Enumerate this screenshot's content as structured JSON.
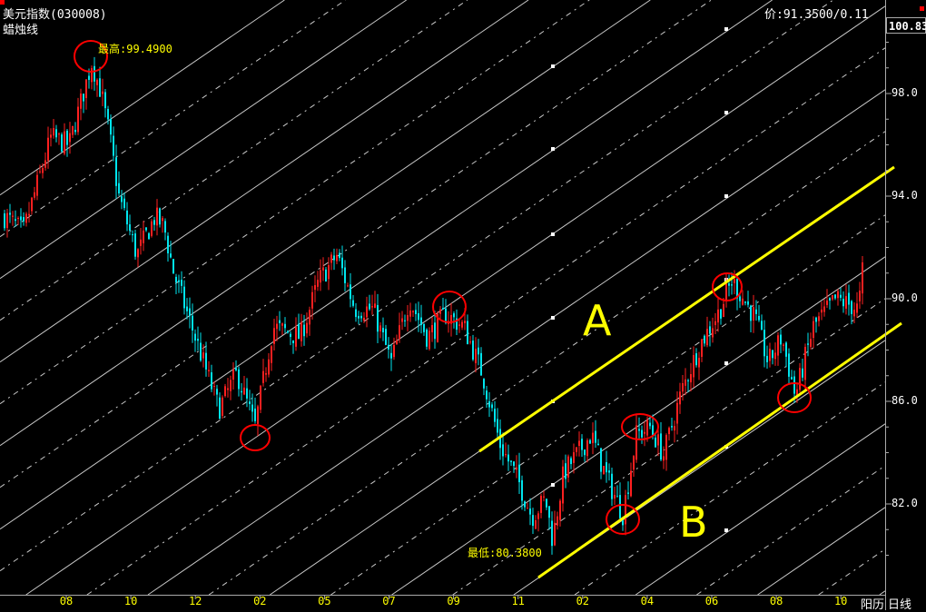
{
  "header": {
    "title": "美元指数(030008)",
    "chart_kind": "蜡烛线",
    "price_readout": "价:91.3500/0.11"
  },
  "axis": {
    "current_price_box": "100.83",
    "calendar_label": "阳历",
    "period_label": "日线"
  },
  "annotations": {
    "high_label": "最高:99.4900",
    "low_label": "最低:80.3800",
    "line_a_label": "A",
    "line_b_label": "B"
  },
  "colors": {
    "background": "#000000",
    "up_candle": "#ff2020",
    "down_candle": "#00e5ee",
    "channel_lines": "#ffff00",
    "circles": "#ff0000",
    "grid_lines": "#c8c8c8"
  },
  "chart_data": {
    "type": "candlestick",
    "title": "美元指数(030008)",
    "y_ticks": [
      98.0,
      94.0,
      90.0,
      86.0,
      82.0
    ],
    "ylim": [
      79.5,
      101
    ],
    "x_tick_labels": [
      "08",
      "10",
      "12",
      "02",
      "05",
      "07",
      "09",
      "11",
      "02",
      "04",
      "06",
      "08",
      "10"
    ],
    "series": [
      {
        "x": [
          -0.96,
          -0.68,
          -0.25,
          0.03,
          0.38,
          0.52,
          0.66,
          0.8,
          1.08,
          1.36,
          1.5,
          1.65,
          1.93,
          2.35,
          2.63,
          2.91,
          3.19,
          3.61,
          3.9,
          4.18,
          4.46,
          4.74,
          5.02,
          5.3,
          5.58,
          5.86,
          6.15,
          6.43,
          6.71,
          6.99,
          7.2,
          7.41,
          7.52,
          7.69,
          8.12,
          8.33,
          8.61,
          8.82,
          9.03,
          9.24,
          9.52,
          9.8,
          10.08,
          10.3,
          10.65,
          10.86,
          11.07,
          11.28,
          11.56,
          11.91,
          12.26,
          12.33
        ],
        "close": [
          93.2,
          92.6,
          96.3,
          96.0,
          99.2,
          98.1,
          96.3,
          94.0,
          91.7,
          93.2,
          92.8,
          91.0,
          88.9,
          85.7,
          87.1,
          85.0,
          88.9,
          88.5,
          90.7,
          91.7,
          89.6,
          89.6,
          87.5,
          90.0,
          88.5,
          89.4,
          88.9,
          87.1,
          84.3,
          82.9,
          81.5,
          82.2,
          80.6,
          83.2,
          84.7,
          83.2,
          81.6,
          84.7,
          85.0,
          83.9,
          86.4,
          88.2,
          89.4,
          90.7,
          89.3,
          87.5,
          88.5,
          86.2,
          88.9,
          90.0,
          89.6,
          91.3
        ]
      }
    ],
    "high": 99.49,
    "low": 80.38,
    "trend_lines": [
      "A",
      "B"
    ],
    "grid": false
  }
}
